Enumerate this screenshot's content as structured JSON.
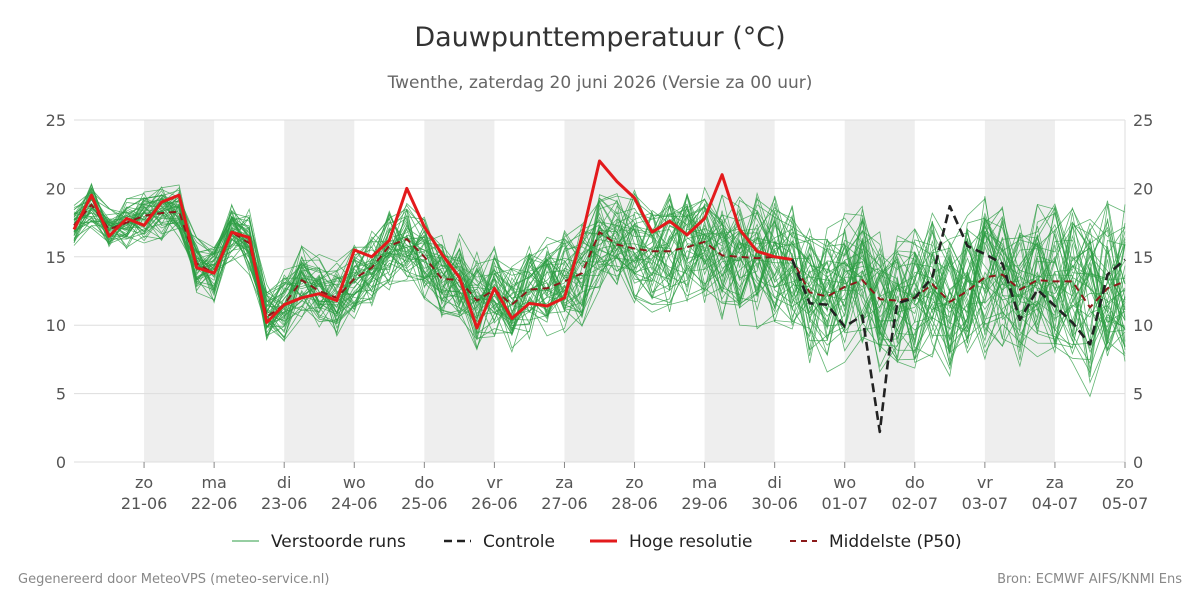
{
  "header": {
    "title": "Dauwpunttemperatuur (°C)",
    "subtitle": "Twenthe, zaterdag 20 juni 2026 (Versie za 00 uur)"
  },
  "footer": {
    "left": "Gegenereerd door MeteoVPS (meteo-service.nl)",
    "right": "Bron: ECMWF AIFS/KNMI Ens"
  },
  "colors": {
    "ensemble": "#2e9e44",
    "control": "#222222",
    "high_res": "#e31a1c",
    "median": "#8b1a1a",
    "shade": "#eeeeee",
    "grid": "#dddddd"
  },
  "chart_data": {
    "type": "line",
    "x_unit": "days from 2026-06-20 00h",
    "xlim": [
      0,
      15
    ],
    "ylim": [
      0,
      25
    ],
    "y_ticks": [
      0,
      5,
      10,
      15,
      20,
      25
    ],
    "grid": "horizontal",
    "legend_position": "bottom",
    "shaded_days": [
      1,
      3,
      5,
      7,
      9,
      11,
      13
    ],
    "x_ticks": [
      {
        "x": 1,
        "day": "zo",
        "date": "21-06"
      },
      {
        "x": 2,
        "day": "ma",
        "date": "22-06"
      },
      {
        "x": 3,
        "day": "di",
        "date": "23-06"
      },
      {
        "x": 4,
        "day": "wo",
        "date": "24-06"
      },
      {
        "x": 5,
        "day": "do",
        "date": "25-06"
      },
      {
        "x": 6,
        "day": "vr",
        "date": "26-06"
      },
      {
        "x": 7,
        "day": "za",
        "date": "27-06"
      },
      {
        "x": 8,
        "day": "zo",
        "date": "28-06"
      },
      {
        "x": 9,
        "day": "ma",
        "date": "29-06"
      },
      {
        "x": 10,
        "day": "di",
        "date": "30-06"
      },
      {
        "x": 11,
        "day": "wo",
        "date": "01-07"
      },
      {
        "x": 12,
        "day": "do",
        "date": "02-07"
      },
      {
        "x": 13,
        "day": "vr",
        "date": "03-07"
      },
      {
        "x": 14,
        "day": "za",
        "date": "04-07"
      },
      {
        "x": 15,
        "day": "zo",
        "date": "05-07"
      }
    ],
    "legend": [
      {
        "key": "ensemble",
        "label": "Verstoorde runs"
      },
      {
        "key": "control",
        "label": "Controle"
      },
      {
        "key": "high_res",
        "label": "Hoge resolutie"
      },
      {
        "key": "median",
        "label": "Middelste (P50)"
      }
    ],
    "high_res": {
      "name": "Hoge resolutie",
      "x": [
        0,
        0.25,
        0.5,
        0.75,
        1.0,
        1.25,
        1.5,
        1.75,
        2.0,
        2.25,
        2.5,
        2.75,
        3.0,
        3.25,
        3.5,
        3.75,
        4.0,
        4.25,
        4.5,
        4.75,
        5.0,
        5.25,
        5.5,
        5.75,
        6.0,
        6.25,
        6.5,
        6.75,
        7.0,
        7.25,
        7.5,
        7.75,
        8.0,
        8.25,
        8.5,
        8.75,
        9.0,
        9.25,
        9.5,
        9.75,
        10.0,
        10.25
      ],
      "y": [
        17.0,
        19.5,
        16.5,
        17.8,
        17.3,
        19.0,
        19.5,
        14.2,
        13.8,
        16.8,
        16.4,
        10.2,
        11.5,
        12.0,
        12.3,
        11.8,
        15.5,
        15.0,
        16.2,
        20.0,
        17.2,
        15.2,
        13.5,
        9.8,
        12.7,
        10.5,
        11.6,
        11.4,
        12.0,
        16.5,
        22.0,
        20.5,
        19.3,
        16.8,
        17.6,
        16.6,
        17.8,
        21.0,
        17.0,
        15.4,
        15.0,
        14.8
      ]
    },
    "control": {
      "name": "Controle",
      "x": [
        10.25,
        10.5,
        10.75,
        11.0,
        11.25,
        11.5,
        11.62,
        11.75,
        12.0,
        12.25,
        12.5,
        12.75,
        13.0,
        13.25,
        13.5,
        13.75,
        14.0,
        14.25,
        14.5,
        14.75,
        15.0
      ],
      "y": [
        14.8,
        11.6,
        11.5,
        9.9,
        10.7,
        2.2,
        7.5,
        11.6,
        12.0,
        13.5,
        18.7,
        15.8,
        15.2,
        14.5,
        10.4,
        12.6,
        11.4,
        10.2,
        8.6,
        13.7,
        14.8
      ]
    },
    "median": {
      "name": "Middelste (P50)",
      "x": [
        0,
        0.25,
        0.5,
        0.75,
        1.0,
        1.25,
        1.5,
        1.75,
        2.0,
        2.25,
        2.5,
        2.75,
        3.0,
        3.25,
        3.5,
        3.75,
        4.0,
        4.25,
        4.5,
        4.75,
        5.0,
        5.25,
        5.5,
        5.75,
        6.0,
        6.25,
        6.5,
        6.75,
        7.0,
        7.25,
        7.5,
        7.75,
        8.0,
        8.25,
        8.5,
        8.75,
        9.0,
        9.25,
        9.5,
        9.75,
        10.0,
        10.25,
        10.5,
        10.75,
        11.0,
        11.25,
        11.5,
        11.75,
        12.0,
        12.25,
        12.5,
        12.75,
        13.0,
        13.25,
        13.5,
        13.75,
        14.0,
        14.25,
        14.5,
        14.75,
        15.0
      ],
      "y": [
        17.3,
        18.8,
        17.0,
        17.5,
        18.0,
        18.2,
        18.3,
        14.5,
        13.8,
        16.8,
        16.0,
        10.6,
        11.5,
        13.3,
        12.5,
        12.0,
        13.4,
        14.2,
        15.8,
        16.3,
        15.0,
        13.4,
        13.3,
        11.8,
        12.6,
        11.5,
        12.6,
        12.7,
        13.2,
        13.8,
        16.8,
        15.9,
        15.6,
        15.4,
        15.4,
        15.7,
        16.1,
        15.1,
        15.0,
        14.9,
        15.0,
        14.8,
        12.4,
        12.1,
        12.8,
        13.3,
        11.9,
        11.8,
        12.0,
        13.0,
        11.7,
        12.5,
        13.5,
        13.7,
        12.6,
        13.3,
        13.2,
        13.2,
        11.3,
        12.7,
        13.2
      ]
    }
  }
}
